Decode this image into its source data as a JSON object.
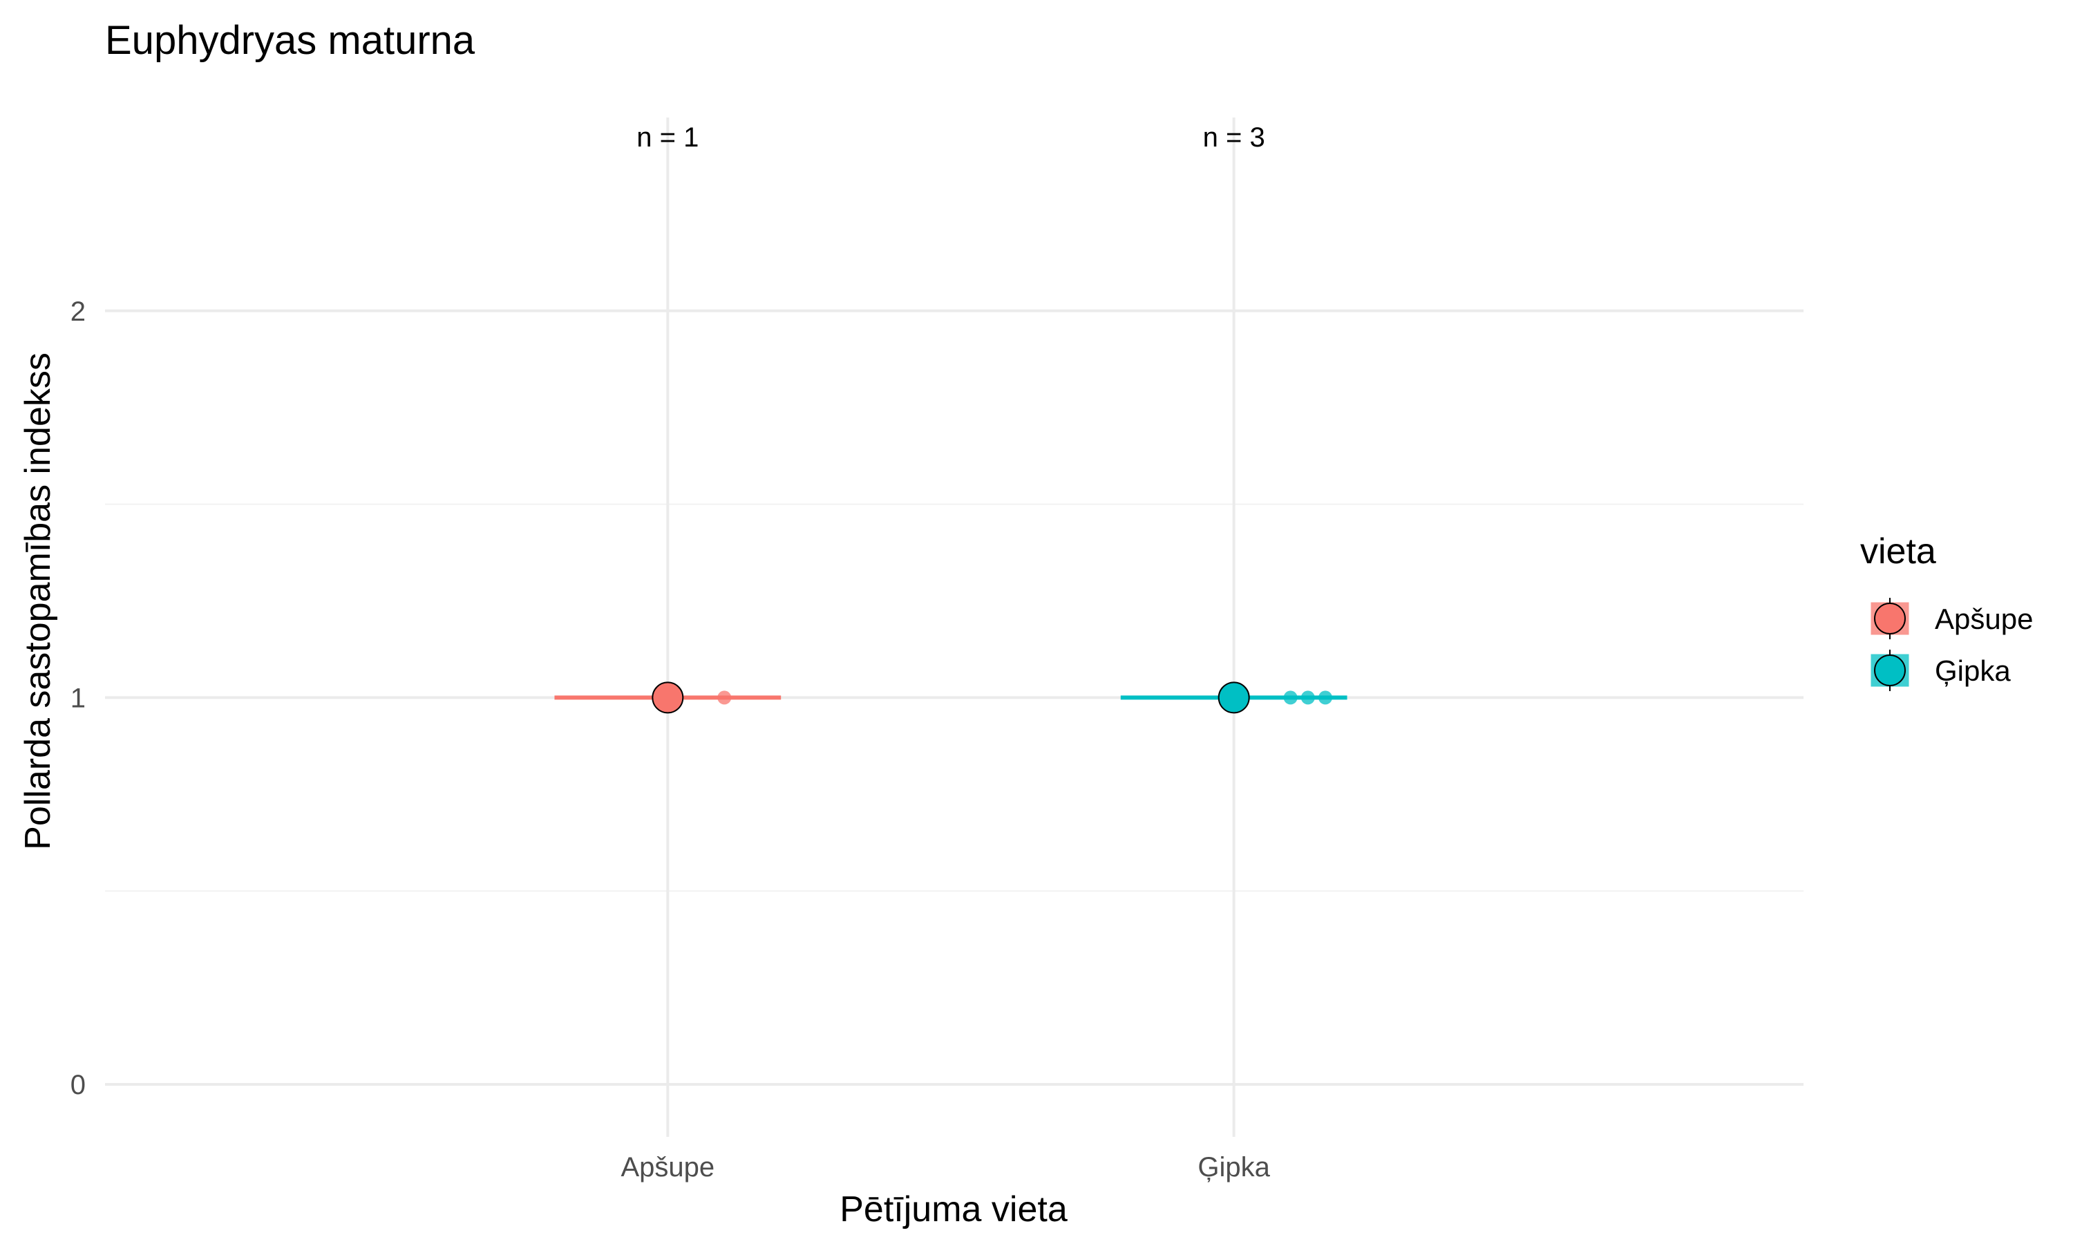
{
  "chart_data": {
    "type": "scatter",
    "title": "Euphydryas maturna",
    "xlabel": "Pētījuma vieta",
    "ylabel": "Pollarda sastopamības indekss",
    "categories": [
      "Apšupe",
      "Ģipka"
    ],
    "ylim": [
      -0.1,
      2.5
    ],
    "yticks": [
      0,
      1,
      2
    ],
    "grid": true,
    "series": [
      {
        "name": "Apšupe",
        "color": "#F8766D",
        "mean": 1,
        "ci": [
          1,
          1
        ],
        "points": [
          1
        ],
        "annotation": "n = 1"
      },
      {
        "name": "Ģipka",
        "color": "#00BFC4",
        "mean": 1,
        "ci": [
          1,
          1
        ],
        "points": [
          1,
          1,
          1
        ],
        "annotation": "n = 3"
      }
    ],
    "legend": {
      "title": "vieta",
      "position": "right",
      "entries": [
        "Apšupe",
        "Ģipka"
      ]
    }
  }
}
